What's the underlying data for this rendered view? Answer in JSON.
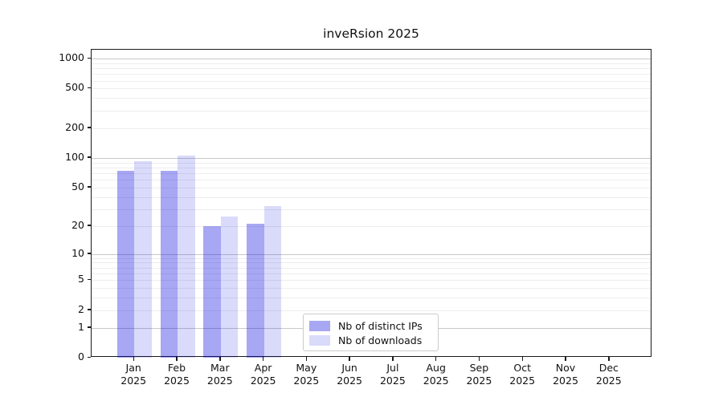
{
  "chart_data": {
    "type": "bar",
    "title": "inveRsion 2025",
    "categories": [
      "Jan 2025",
      "Feb 2025",
      "Mar 2025",
      "Apr 2025",
      "May 2025",
      "Jun 2025",
      "Jul 2025",
      "Aug 2025",
      "Sep 2025",
      "Oct 2025",
      "Nov 2025",
      "Dec 2025"
    ],
    "x_tick_labels": [
      {
        "line1": "Jan",
        "line2": "2025"
      },
      {
        "line1": "Feb",
        "line2": "2025"
      },
      {
        "line1": "Mar",
        "line2": "2025"
      },
      {
        "line1": "Apr",
        "line2": "2025"
      },
      {
        "line1": "May",
        "line2": "2025"
      },
      {
        "line1": "Jun",
        "line2": "2025"
      },
      {
        "line1": "Jul",
        "line2": "2025"
      },
      {
        "line1": "Aug",
        "line2": "2025"
      },
      {
        "line1": "Sep",
        "line2": "2025"
      },
      {
        "line1": "Oct",
        "line2": "2025"
      },
      {
        "line1": "Nov",
        "line2": "2025"
      },
      {
        "line1": "Dec",
        "line2": "2025"
      }
    ],
    "series": [
      {
        "name": "Nb of distinct IPs",
        "color": "rgba(0,0,220,0.345)",
        "values": [
          74,
          74,
          20,
          21,
          0,
          0,
          0,
          0,
          0,
          0,
          0,
          0
        ]
      },
      {
        "name": "Nb of downloads",
        "color": "rgba(0,0,220,0.145)",
        "values": [
          93,
          105,
          25,
          32,
          0,
          0,
          0,
          0,
          0,
          0,
          0,
          0
        ]
      }
    ],
    "yscale": "log10(value+1)",
    "ylim": [
      0,
      1227
    ],
    "y_ticks": [
      0,
      1,
      2,
      5,
      10,
      20,
      50,
      100,
      200,
      500,
      1000
    ],
    "grid": {
      "major_lines": [
        1,
        10,
        100,
        1000
      ],
      "minor_lines": [
        2,
        3,
        4,
        5,
        6,
        7,
        8,
        9,
        20,
        30,
        40,
        50,
        60,
        70,
        80,
        90,
        200,
        300,
        400,
        500,
        600,
        700,
        800,
        900
      ],
      "major_color": "#c8c8c8",
      "minor_color": "#ededed"
    },
    "legend": {
      "position": "lower center",
      "items": [
        "Nb of distinct IPs",
        "Nb of downloads"
      ]
    },
    "xlabel": "",
    "ylabel": ""
  },
  "colors": {
    "spine": "#1a1a1a",
    "text": "#111111",
    "background": "#ffffff"
  }
}
